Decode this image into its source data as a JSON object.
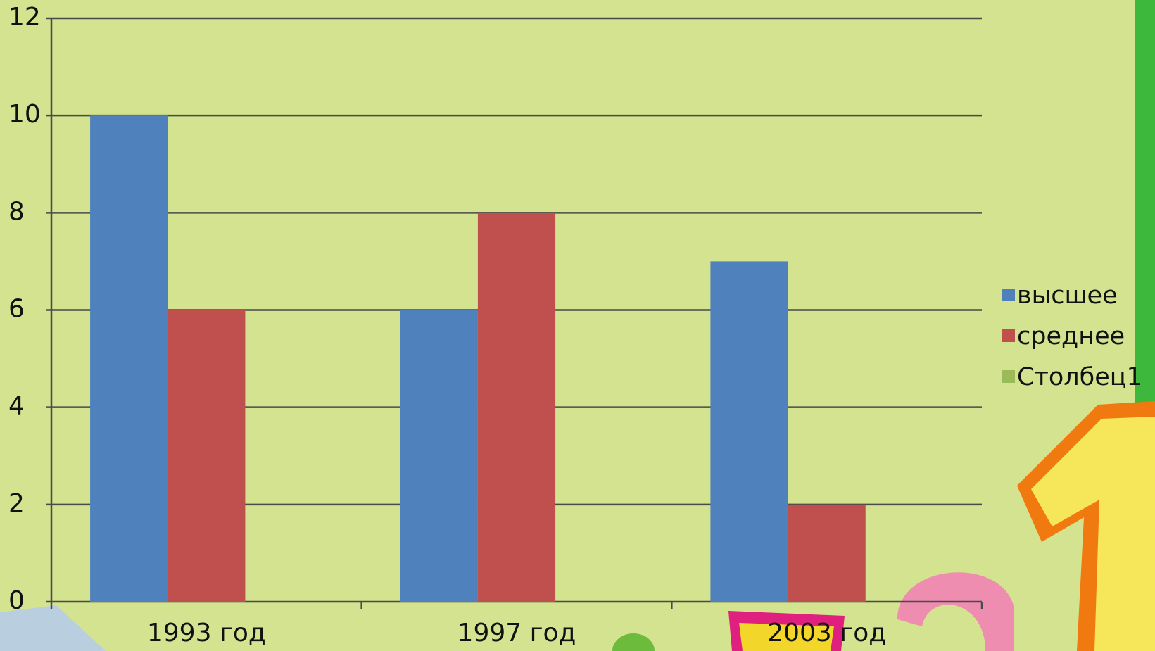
{
  "chart_data": {
    "type": "bar",
    "categories": [
      "1993 год",
      "1997 год",
      "2003 год"
    ],
    "series": [
      {
        "name": "высшее",
        "color": "#4f81bd",
        "values": [
          10,
          6,
          7
        ]
      },
      {
        "name": "среднее",
        "color": "#c0504d",
        "values": [
          6,
          8,
          2
        ]
      },
      {
        "name": "Столбец1",
        "color": "#9bbb59",
        "values": [
          null,
          null,
          null
        ]
      }
    ],
    "ylim": [
      0,
      12
    ],
    "yticks": [
      0,
      2,
      4,
      6,
      8,
      10,
      12
    ],
    "grid": true,
    "legend": "right"
  }
}
